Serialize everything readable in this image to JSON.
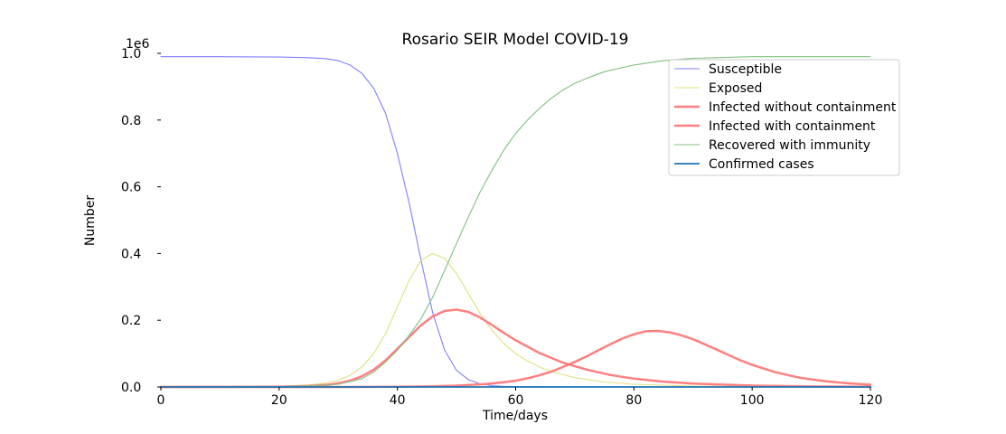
{
  "chart_data": {
    "type": "line",
    "title": "Rosario SEIR Model COVID-19",
    "xlabel": "Time/days",
    "ylabel": "Number",
    "y_offset_label": "1e6",
    "xlim": [
      0,
      120
    ],
    "ylim": [
      0,
      1000000
    ],
    "x_ticks": [
      0,
      20,
      40,
      60,
      80,
      100,
      120
    ],
    "x_tick_labels": [
      "0",
      "20",
      "40",
      "60",
      "80",
      "100",
      "120"
    ],
    "y_ticks": [
      0,
      200000,
      400000,
      600000,
      800000,
      1000000
    ],
    "y_tick_labels": [
      "0.0",
      "0.2",
      "0.4",
      "0.6",
      "0.8",
      "1.0"
    ],
    "grid": false,
    "legend_position": "top-right",
    "series": [
      {
        "name": "Susceptible",
        "color": "#7f7fff",
        "x": [
          0,
          10,
          20,
          25,
          28,
          30,
          32,
          34,
          36,
          38,
          40,
          42,
          44,
          46,
          48,
          50,
          52,
          54,
          56,
          58,
          60,
          65,
          70,
          80,
          100,
          120
        ],
        "values": [
          990000,
          990000,
          989000,
          987000,
          984000,
          978000,
          965000,
          940000,
          895000,
          820000,
          700000,
          550000,
          380000,
          220000,
          110000,
          50000,
          22000,
          9000,
          4000,
          2000,
          1000,
          500,
          300,
          200,
          100,
          100
        ]
      },
      {
        "name": "Exposed",
        "color": "#e0e080",
        "x": [
          0,
          10,
          20,
          25,
          28,
          30,
          32,
          34,
          36,
          38,
          40,
          42,
          44,
          46,
          48,
          50,
          52,
          54,
          56,
          58,
          60,
          62,
          64,
          66,
          70,
          75,
          80,
          90,
          100,
          120
        ],
        "values": [
          0,
          500,
          2000,
          6000,
          12000,
          20000,
          35000,
          60000,
          100000,
          160000,
          240000,
          320000,
          380000,
          400000,
          385000,
          340000,
          280000,
          220000,
          170000,
          130000,
          100000,
          78000,
          60000,
          46000,
          28000,
          15000,
          8000,
          2500,
          800,
          100
        ]
      },
      {
        "name": "Infected without containment",
        "color": "#ff7f7f",
        "x": [
          0,
          10,
          20,
          25,
          28,
          30,
          32,
          34,
          36,
          38,
          40,
          42,
          44,
          46,
          48,
          50,
          52,
          54,
          56,
          58,
          60,
          64,
          68,
          72,
          76,
          80,
          85,
          90,
          100,
          110,
          120
        ],
        "values": [
          0,
          300,
          1000,
          3000,
          6000,
          11000,
          19000,
          32000,
          52000,
          80000,
          115000,
          150000,
          185000,
          212000,
          228000,
          232000,
          225000,
          208000,
          186000,
          162000,
          140000,
          102000,
          73000,
          52000,
          36000,
          25000,
          16000,
          10000,
          4000,
          1500,
          500
        ]
      },
      {
        "name": "Infected with containment",
        "color": "#ff7f7f",
        "x": [
          0,
          30,
          40,
          45,
          50,
          55,
          58,
          60,
          62,
          64,
          66,
          68,
          70,
          72,
          74,
          76,
          78,
          80,
          82,
          84,
          86,
          88,
          90,
          92,
          94,
          96,
          98,
          100,
          104,
          108,
          112,
          116,
          120
        ],
        "values": [
          0,
          0,
          500,
          1500,
          4000,
          9000,
          14000,
          19000,
          26000,
          35000,
          46000,
          60000,
          75000,
          92000,
          110000,
          128000,
          145000,
          158000,
          167000,
          168000,
          164000,
          155000,
          143000,
          128000,
          112000,
          96000,
          80000,
          66000,
          44000,
          28000,
          18000,
          11000,
          7000
        ]
      },
      {
        "name": "Recovered with immunity",
        "color": "#80c080",
        "x": [
          0,
          10,
          20,
          25,
          30,
          34,
          36,
          38,
          40,
          42,
          44,
          46,
          48,
          50,
          52,
          54,
          56,
          58,
          60,
          62,
          64,
          66,
          68,
          70,
          72,
          75,
          80,
          85,
          90,
          100,
          110,
          120
        ],
        "values": [
          0,
          200,
          1000,
          3000,
          8000,
          25000,
          45000,
          75000,
          110000,
          155000,
          205000,
          270000,
          350000,
          430000,
          510000,
          585000,
          650000,
          710000,
          760000,
          800000,
          835000,
          865000,
          890000,
          910000,
          925000,
          945000,
          965000,
          978000,
          985000,
          990000,
          990000,
          990000
        ]
      },
      {
        "name": "Confirmed cases",
        "color": "#1f77b4",
        "x": [
          0,
          20,
          40,
          60,
          80,
          100,
          120
        ],
        "values": [
          0,
          0,
          0,
          0,
          0,
          0,
          0
        ]
      }
    ]
  }
}
